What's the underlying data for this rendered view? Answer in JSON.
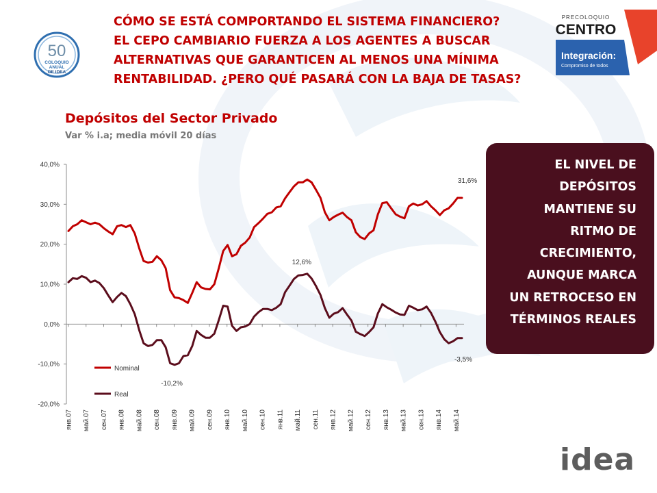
{
  "header": {
    "lines": [
      "CÓMO SE ESTÁ COMPORTANDO EL SISTEMA FINANCIERO?",
      "EL CEPO CAMBIARIO FUERZA A LOS AGENTES A BUSCAR",
      "ALTERNATIVAS QUE GARANTICEN AL MENOS UNA MÍNIMA",
      "RENTABILIDAD. ¿PERO QUÉ PASARÁ CON LA BAJA DE TASAS?"
    ]
  },
  "logos": {
    "coloquio": {
      "number": "50",
      "line1": "COLOQUIO",
      "line2": "ANUAL",
      "line3": "DE IDEA"
    },
    "centro": {
      "top": "PRECOLOQUIO",
      "name": "CENTRO",
      "tag": "Integración:",
      "sub": "Compromiso de todos"
    },
    "idea": "idea"
  },
  "colors": {
    "header_red": "#c00000",
    "nominal": "#c00000",
    "real": "#5b0d1c",
    "callout_bg": "#4a0f1e",
    "grid": "#d9d9d9"
  },
  "callout": {
    "lines": [
      "EL NIVEL DE",
      "DEPÓSITOS",
      "MANTIENE SU",
      "RITMO DE",
      "CRECIMIENTO,",
      "AUNQUE MARCA",
      "UN RETROCESO EN",
      "TÉRMINOS REALES"
    ]
  },
  "chart_data": {
    "type": "line",
    "title": "Depósitos del Sector Privado",
    "subtitle": "Var % i.a; media móvil 20 días",
    "ylim": [
      -20,
      40
    ],
    "yticks": [
      40,
      30,
      20,
      10,
      0,
      -10,
      -20
    ],
    "ytick_labels": [
      "40,0%",
      "30,0%",
      "20,0%",
      "10,0%",
      "0,0%",
      "-10,0%",
      "-20,0%"
    ],
    "x_labels": [
      "янв.07",
      "май.07",
      "сен.07",
      "янв.08",
      "май.08",
      "сен.08",
      "янв.09",
      "май.09",
      "сен.09",
      "янв.10",
      "май.10",
      "сен.10",
      "янв.11",
      "май.11",
      "сен.11",
      "янв.12",
      "май.12",
      "сен.12",
      "янв.13",
      "май.13",
      "сен.13",
      "янв.14",
      "май.14"
    ],
    "grid": false,
    "legend_position": "bottom-left",
    "series": [
      {
        "name": "Nominal",
        "values": [
          23.3,
          24.5,
          25.0,
          26.0,
          25.5,
          25.0,
          25.4,
          25.0,
          24.0,
          23.2,
          22.5,
          24.5,
          24.8,
          24.3,
          24.8,
          22.7,
          19.0,
          15.8,
          15.4,
          15.6,
          17.0,
          16.0,
          14.0,
          8.5,
          6.7,
          6.5,
          6.0,
          5.3,
          7.8,
          10.5,
          9.2,
          8.8,
          8.7,
          10.0,
          14.0,
          18.3,
          19.8,
          17.0,
          17.5,
          19.6,
          20.4,
          21.7,
          24.3,
          25.3,
          26.4,
          27.6,
          28.0,
          29.2,
          29.5,
          31.5,
          33.0,
          34.5,
          35.5,
          35.5,
          36.2,
          35.5,
          33.6,
          31.6,
          28.0,
          26.0,
          26.8,
          27.4,
          27.9,
          26.8,
          26.0,
          23.0,
          21.8,
          21.3,
          22.7,
          23.5,
          27.5,
          30.3,
          30.5,
          29.0,
          27.5,
          26.9,
          26.5,
          29.5,
          30.2,
          29.7,
          30.0,
          30.8,
          29.5,
          28.5,
          27.3,
          28.5,
          29.0,
          30.2,
          31.6,
          31.6
        ]
      },
      {
        "name": "Real",
        "values": [
          10.5,
          11.5,
          11.3,
          12.0,
          11.6,
          10.5,
          10.9,
          10.3,
          9.0,
          7.2,
          5.5,
          6.8,
          7.8,
          7.0,
          5.0,
          2.5,
          -1.5,
          -4.8,
          -5.5,
          -5.2,
          -4.0,
          -4.0,
          -5.8,
          -9.8,
          -10.2,
          -9.8,
          -8.0,
          -7.8,
          -5.5,
          -1.7,
          -2.7,
          -3.4,
          -3.4,
          -2.4,
          1.0,
          4.6,
          4.4,
          -0.4,
          -1.7,
          -0.8,
          -0.6,
          0.0,
          1.9,
          3.0,
          3.8,
          3.8,
          3.5,
          4.1,
          5.0,
          8.0,
          9.6,
          11.3,
          12.2,
          12.3,
          12.6,
          11.4,
          9.5,
          7.3,
          4.0,
          1.6,
          2.6,
          3.0,
          4.0,
          2.4,
          0.9,
          -1.9,
          -2.5,
          -3.0,
          -2.0,
          -0.8,
          2.7,
          5.0,
          4.2,
          3.6,
          2.9,
          2.4,
          2.3,
          4.6,
          4.1,
          3.5,
          3.7,
          4.4,
          2.8,
          0.6,
          -2.0,
          -3.8,
          -4.8,
          -4.3,
          -3.5,
          -3.5
        ]
      }
    ],
    "annotations": [
      {
        "text": "31,6%",
        "series": 0,
        "index": 89
      },
      {
        "text": "12,6%",
        "series": 1,
        "index": 54
      },
      {
        "text": "-10,2%",
        "series": 1,
        "index": 24
      },
      {
        "text": "-3,5%",
        "series": 1,
        "index": 89
      }
    ]
  }
}
